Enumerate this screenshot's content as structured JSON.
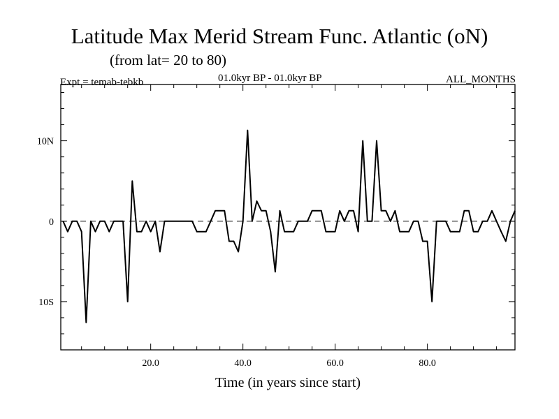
{
  "chart_data": {
    "type": "line",
    "title": "Latitude Max Merid Stream Func. Atlantic (oN)",
    "subtitle": "(from lat= 20 to 80)",
    "left_annotation": "Expt = temab-tebkb",
    "center_annotation": "01.0kyr BP - 01.0kyr BP",
    "right_annotation": "ALL_MONTHS",
    "xlabel": "Time (in years since start)",
    "ylabel": "",
    "xlim": [
      0.5,
      99
    ],
    "ylim": [
      -16,
      17
    ],
    "x_ticks": [
      {
        "value": 20,
        "label": "20.0"
      },
      {
        "value": 40,
        "label": "40.0"
      },
      {
        "value": 60,
        "label": "60.0"
      },
      {
        "value": 80,
        "label": "80.0"
      }
    ],
    "y_ticks": [
      {
        "value": 10,
        "label": "10N"
      },
      {
        "value": 0,
        "label": "0"
      },
      {
        "value": -10,
        "label": "10S"
      }
    ],
    "reference_line": 0,
    "series": [
      {
        "name": "temab-tebkb",
        "x": [
          1,
          2,
          3,
          4,
          5,
          6,
          7,
          8,
          9,
          10,
          11,
          12,
          13,
          14,
          15,
          16,
          17,
          18,
          19,
          20,
          21,
          22,
          23,
          24,
          25,
          26,
          27,
          28,
          29,
          30,
          31,
          32,
          33,
          34,
          35,
          36,
          37,
          38,
          39,
          40,
          41,
          42,
          43,
          44,
          45,
          46,
          47,
          48,
          49,
          50,
          51,
          52,
          53,
          54,
          55,
          56,
          57,
          58,
          59,
          60,
          61,
          62,
          63,
          64,
          65,
          66,
          67,
          68,
          69,
          70,
          71,
          72,
          73,
          74,
          75,
          76,
          77,
          78,
          79,
          80,
          81,
          82,
          83,
          84,
          85,
          86,
          87,
          88,
          89,
          90,
          91,
          92,
          93,
          94,
          95,
          96,
          97,
          98,
          99
        ],
        "values": [
          0,
          -1.3,
          0,
          0,
          -1.3,
          -12.6,
          0,
          -1.3,
          0,
          0,
          -1.3,
          0,
          0,
          0,
          -10,
          5,
          -1.3,
          -1.3,
          0,
          -1.3,
          0,
          -3.8,
          0,
          0,
          0,
          0,
          0,
          0,
          0,
          -1.3,
          -1.3,
          -1.3,
          0,
          1.3,
          1.3,
          1.3,
          -2.5,
          -2.5,
          -3.8,
          0,
          11.3,
          0,
          2.5,
          1.3,
          1.3,
          -1.3,
          -6.3,
          1.3,
          -1.3,
          -1.3,
          -1.3,
          0,
          0,
          0,
          1.3,
          1.3,
          1.3,
          -1.3,
          -1.3,
          -1.3,
          1.3,
          0,
          1.3,
          1.3,
          -1.3,
          10,
          0,
          0,
          10,
          1.3,
          1.3,
          0,
          1.3,
          -1.3,
          -1.3,
          -1.3,
          0,
          0,
          -2.5,
          -2.5,
          -10,
          0,
          0,
          0,
          -1.3,
          -1.3,
          -1.3,
          1.3,
          1.3,
          -1.3,
          -1.3,
          0,
          0,
          1.3,
          0,
          -1.3,
          -2.5,
          0,
          1.3
        ]
      }
    ]
  }
}
